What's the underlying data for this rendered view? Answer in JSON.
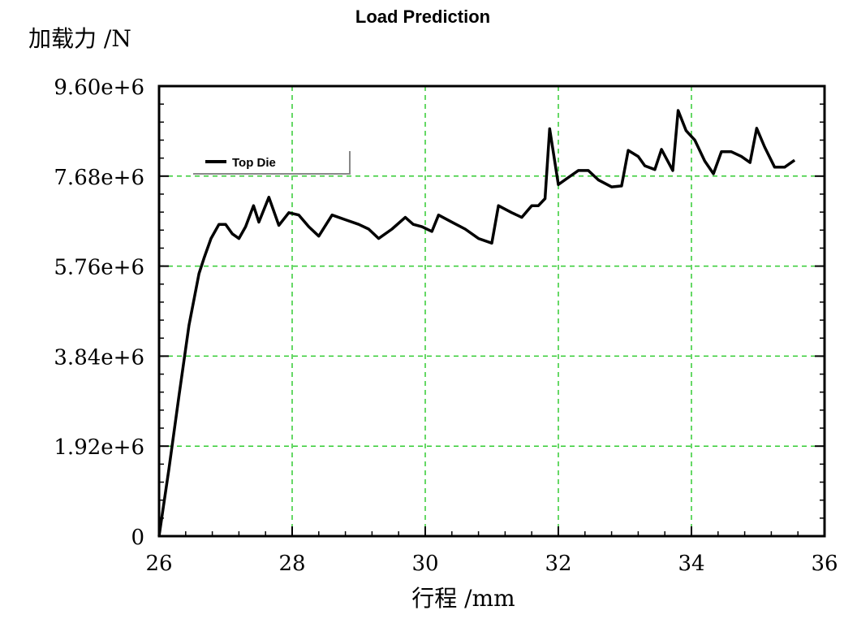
{
  "chart_data": {
    "type": "line",
    "title": "Load Prediction",
    "xlabel": "行程 /mm",
    "ylabel": "加载力 /N",
    "xlim": [
      26,
      36
    ],
    "ylim": [
      0,
      9600000
    ],
    "xticks": [
      26,
      28,
      30,
      32,
      34,
      36
    ],
    "xtick_labels": [
      "26",
      "28",
      "30",
      "32",
      "34",
      "36"
    ],
    "yticks": [
      0,
      1920000,
      3840000,
      5760000,
      7680000,
      9600000
    ],
    "ytick_labels": [
      "0",
      "1.92e+6",
      "3.84e+6",
      "5.76e+6",
      "7.68e+6",
      "9.60e+6"
    ],
    "grid": true,
    "grid_color": "#33cc33",
    "legend_position": "top-left",
    "series": [
      {
        "name": "Top Die",
        "color": "#000000",
        "x": [
          26.0,
          26.15,
          26.3,
          26.45,
          26.6,
          26.68,
          26.78,
          26.9,
          27.0,
          27.1,
          27.2,
          27.3,
          27.42,
          27.5,
          27.65,
          27.8,
          27.95,
          28.1,
          28.25,
          28.4,
          28.6,
          28.8,
          29.0,
          29.15,
          29.3,
          29.5,
          29.7,
          29.82,
          29.95,
          30.1,
          30.2,
          30.4,
          30.6,
          30.8,
          31.0,
          31.1,
          31.3,
          31.45,
          31.6,
          31.7,
          31.8,
          31.87,
          32.0,
          32.15,
          32.3,
          32.45,
          32.6,
          32.8,
          32.95,
          33.05,
          33.2,
          33.3,
          33.45,
          33.55,
          33.72,
          33.8,
          33.92,
          34.05,
          34.2,
          34.33,
          34.45,
          34.6,
          34.75,
          34.88,
          34.98,
          35.1,
          35.25,
          35.4,
          35.55
        ],
        "y": [
          0,
          1450000,
          3000000,
          4500000,
          5600000,
          5950000,
          6350000,
          6650000,
          6650000,
          6450000,
          6350000,
          6600000,
          7050000,
          6700000,
          7230000,
          6630000,
          6900000,
          6850000,
          6600000,
          6400000,
          6850000,
          6750000,
          6650000,
          6550000,
          6350000,
          6550000,
          6800000,
          6650000,
          6600000,
          6500000,
          6850000,
          6700000,
          6550000,
          6350000,
          6250000,
          7050000,
          6900000,
          6800000,
          7050000,
          7050000,
          7200000,
          8690000,
          7500000,
          7650000,
          7800000,
          7800000,
          7600000,
          7450000,
          7470000,
          8230000,
          8100000,
          7900000,
          7820000,
          8250000,
          7800000,
          9080000,
          8650000,
          8450000,
          8000000,
          7730000,
          8200000,
          8200000,
          8100000,
          7970000,
          8700000,
          8300000,
          7870000,
          7870000,
          8020000
        ]
      }
    ]
  }
}
